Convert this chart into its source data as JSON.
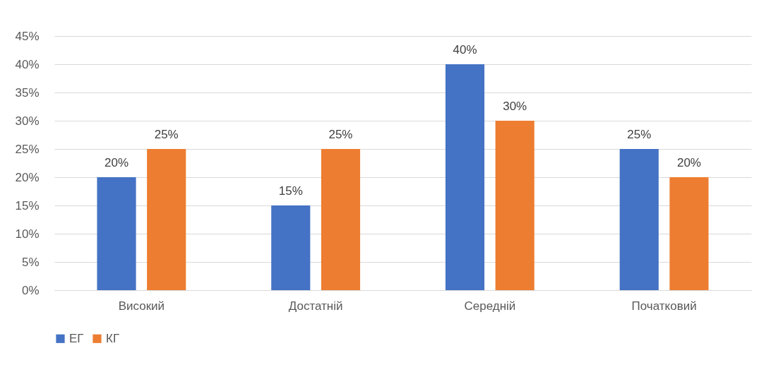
{
  "chart_data": {
    "type": "bar",
    "categories": [
      "Високий",
      "Достатній",
      "Середній",
      "Початковий"
    ],
    "series": [
      {
        "name": "ЕГ",
        "color": "#4472c4",
        "values": [
          20,
          15,
          40,
          25
        ],
        "value_labels": [
          "20%",
          "15%",
          "40%",
          "25%"
        ]
      },
      {
        "name": "КГ",
        "color": "#ed7d31",
        "values": [
          25,
          25,
          30,
          20
        ],
        "value_labels": [
          "25%",
          "25%",
          "30%",
          "20%"
        ]
      }
    ],
    "ylim": [
      0,
      45
    ],
    "yticks": [
      {
        "value": 0,
        "label": "0%"
      },
      {
        "value": 5,
        "label": "5%"
      },
      {
        "value": 10,
        "label": "10%"
      },
      {
        "value": 15,
        "label": "15%"
      },
      {
        "value": 20,
        "label": "20%"
      },
      {
        "value": 25,
        "label": "25%"
      },
      {
        "value": 30,
        "label": "30%"
      },
      {
        "value": 35,
        "label": "35%"
      },
      {
        "value": 40,
        "label": "40%"
      },
      {
        "value": 45,
        "label": "45%"
      }
    ],
    "grid": "y",
    "legend": "bottom"
  }
}
